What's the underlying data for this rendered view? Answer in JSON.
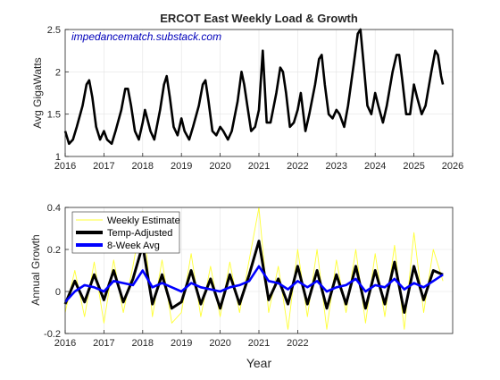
{
  "colors": {
    "load": "#000000",
    "weekly": "#ffff33",
    "temp": "#000000",
    "avg": "#0000ff",
    "watermark": "#0000bb",
    "grid": "#e3e3e3",
    "axis": "#262626"
  },
  "chart_data": [
    {
      "type": "line",
      "title": "ERCOT East Weekly Load & Growth",
      "annotation": "impedancematch.substack.com",
      "xlabel": "",
      "ylabel": "Avg GigaWatts",
      "xlim": [
        2016,
        2026
      ],
      "ylim": [
        1,
        2.5
      ],
      "grid": true,
      "legend": "none",
      "x_ticks": [
        "2016",
        "2017",
        "2018",
        "2019",
        "2020",
        "2021",
        "2022",
        "2023",
        "2024",
        "2025",
        "2026"
      ],
      "y_ticks": [
        "1",
        "1.5",
        "2",
        "2.5"
      ],
      "series": [
        {
          "color_key": "load",
          "x": [
            2016.0,
            2016.1,
            2016.2,
            2016.3,
            2016.45,
            2016.55,
            2016.62,
            2016.7,
            2016.8,
            2016.9,
            2017.0,
            2017.08,
            2017.2,
            2017.3,
            2017.45,
            2017.55,
            2017.62,
            2017.7,
            2017.8,
            2017.9,
            2018.0,
            2018.06,
            2018.2,
            2018.3,
            2018.45,
            2018.55,
            2018.62,
            2018.7,
            2018.8,
            2018.9,
            2019.0,
            2019.08,
            2019.2,
            2019.3,
            2019.45,
            2019.55,
            2019.62,
            2019.7,
            2019.8,
            2019.9,
            2020.0,
            2020.08,
            2020.2,
            2020.3,
            2020.45,
            2020.55,
            2020.62,
            2020.7,
            2020.8,
            2020.9,
            2021.0,
            2021.1,
            2021.2,
            2021.3,
            2021.45,
            2021.55,
            2021.62,
            2021.7,
            2021.8,
            2021.9,
            2022.0,
            2022.08,
            2022.2,
            2022.3,
            2022.45,
            2022.55,
            2022.62,
            2022.7,
            2022.8,
            2022.9,
            2023.0,
            2023.08,
            2023.2,
            2023.3,
            2023.45,
            2023.55,
            2023.62,
            2023.7,
            2023.8,
            2023.9,
            2024.0,
            2024.08,
            2024.2,
            2024.3,
            2024.45,
            2024.55,
            2024.62,
            2024.7,
            2024.8,
            2024.9,
            2025.0,
            2025.08,
            2025.2,
            2025.3,
            2025.45,
            2025.55,
            2025.62,
            2025.7,
            2025.75
          ],
          "values": [
            1.3,
            1.15,
            1.2,
            1.35,
            1.6,
            1.85,
            1.9,
            1.7,
            1.35,
            1.2,
            1.3,
            1.2,
            1.15,
            1.3,
            1.55,
            1.8,
            1.8,
            1.6,
            1.3,
            1.2,
            1.4,
            1.55,
            1.3,
            1.2,
            1.55,
            1.85,
            1.95,
            1.7,
            1.35,
            1.25,
            1.45,
            1.3,
            1.2,
            1.35,
            1.6,
            1.85,
            1.9,
            1.65,
            1.3,
            1.25,
            1.35,
            1.3,
            1.2,
            1.3,
            1.65,
            2.0,
            1.85,
            1.6,
            1.3,
            1.35,
            1.55,
            2.25,
            1.4,
            1.4,
            1.75,
            2.05,
            2.0,
            1.75,
            1.35,
            1.4,
            1.55,
            1.75,
            1.3,
            1.5,
            1.85,
            2.15,
            2.2,
            1.85,
            1.5,
            1.45,
            1.55,
            1.5,
            1.35,
            1.6,
            2.1,
            2.45,
            2.5,
            2.1,
            1.6,
            1.5,
            1.75,
            1.6,
            1.4,
            1.6,
            2.0,
            2.2,
            2.2,
            1.9,
            1.5,
            1.5,
            1.85,
            1.7,
            1.5,
            1.6,
            2.0,
            2.25,
            2.2,
            1.95,
            1.85
          ]
        }
      ]
    },
    {
      "type": "line",
      "title": "",
      "xlabel": "Year",
      "ylabel": "Annual Growth",
      "xlim": [
        2016,
        2026
      ],
      "ylim": [
        -0.2,
        0.4
      ],
      "grid": true,
      "legend": "top-left",
      "x_ticks": [
        "2016",
        "2017",
        "2018",
        "2019",
        "2020",
        "2021",
        "2022"
      ],
      "y_ticks": [
        "-0.2",
        "0",
        "0.2",
        "0.4"
      ],
      "series": [
        {
          "name": "Weekly Estimate",
          "color_key": "weekly",
          "x": [
            2016.0,
            2016.25,
            2016.5,
            2016.75,
            2017.0,
            2017.25,
            2017.5,
            2017.75,
            2018.0,
            2018.25,
            2018.5,
            2018.75,
            2019.0,
            2019.25,
            2019.5,
            2019.75,
            2020.0,
            2020.25,
            2020.5,
            2020.75,
            2021.0,
            2021.25,
            2021.5,
            2021.75,
            2022.0,
            2022.25,
            2022.5,
            2022.75,
            2023.0,
            2023.25,
            2023.5,
            2023.75,
            2024.0,
            2024.25,
            2024.5,
            2024.75,
            2025.0,
            2025.25,
            2025.5,
            2025.75
          ],
          "values": [
            -0.1,
            0.1,
            -0.12,
            0.14,
            -0.15,
            0.15,
            -0.1,
            0.12,
            0.38,
            -0.12,
            0.15,
            -0.15,
            -0.1,
            0.18,
            -0.12,
            0.12,
            -0.12,
            0.14,
            -0.1,
            0.15,
            0.4,
            -0.1,
            0.12,
            -0.18,
            0.2,
            -0.12,
            0.2,
            -0.18,
            0.15,
            -0.1,
            0.2,
            -0.15,
            0.18,
            -0.12,
            0.22,
            -0.18,
            0.28,
            -0.1,
            0.2,
            0.05
          ]
        },
        {
          "name": "Temp-Adjusted",
          "color_key": "temp",
          "x": [
            2016.0,
            2016.25,
            2016.5,
            2016.75,
            2017.0,
            2017.25,
            2017.5,
            2017.75,
            2018.0,
            2018.25,
            2018.5,
            2018.75,
            2019.0,
            2019.25,
            2019.5,
            2019.75,
            2020.0,
            2020.25,
            2020.5,
            2020.75,
            2021.0,
            2021.25,
            2021.5,
            2021.75,
            2022.0,
            2022.25,
            2022.5,
            2022.75,
            2023.0,
            2023.25,
            2023.5,
            2023.75,
            2024.0,
            2024.25,
            2024.5,
            2024.75,
            2025.0,
            2025.25,
            2025.5,
            2025.75
          ],
          "values": [
            -0.06,
            0.05,
            -0.05,
            0.08,
            -0.04,
            0.1,
            -0.05,
            0.06,
            0.22,
            -0.06,
            0.08,
            -0.08,
            -0.05,
            0.1,
            -0.06,
            0.06,
            -0.08,
            0.08,
            -0.06,
            0.08,
            0.24,
            -0.04,
            0.06,
            -0.06,
            0.12,
            -0.06,
            0.1,
            -0.08,
            0.08,
            -0.06,
            0.12,
            -0.08,
            0.1,
            -0.06,
            0.14,
            -0.1,
            0.12,
            -0.04,
            0.1,
            0.08
          ]
        },
        {
          "name": "8-Week Avg",
          "color_key": "avg",
          "x": [
            2016.0,
            2016.25,
            2016.5,
            2016.75,
            2017.0,
            2017.25,
            2017.5,
            2017.75,
            2018.0,
            2018.25,
            2018.5,
            2018.75,
            2019.0,
            2019.25,
            2019.5,
            2019.75,
            2020.0,
            2020.25,
            2020.5,
            2020.75,
            2021.0,
            2021.25,
            2021.5,
            2021.75,
            2022.0,
            2022.25,
            2022.5,
            2022.75,
            2023.0,
            2023.25,
            2023.5,
            2023.75,
            2024.0,
            2024.25,
            2024.5,
            2024.75,
            2025.0,
            2025.25,
            2025.5,
            2025.75
          ],
          "values": [
            -0.05,
            0.0,
            0.03,
            0.02,
            0.0,
            0.05,
            0.04,
            0.03,
            0.1,
            0.02,
            0.04,
            0.02,
            0.0,
            0.04,
            0.02,
            0.01,
            0.0,
            0.02,
            0.03,
            0.05,
            0.12,
            0.05,
            0.04,
            0.01,
            0.05,
            0.02,
            0.05,
            0.0,
            0.02,
            0.03,
            0.06,
            0.0,
            0.03,
            0.02,
            0.06,
            0.01,
            0.04,
            0.02,
            0.05,
            0.08
          ]
        }
      ]
    }
  ]
}
